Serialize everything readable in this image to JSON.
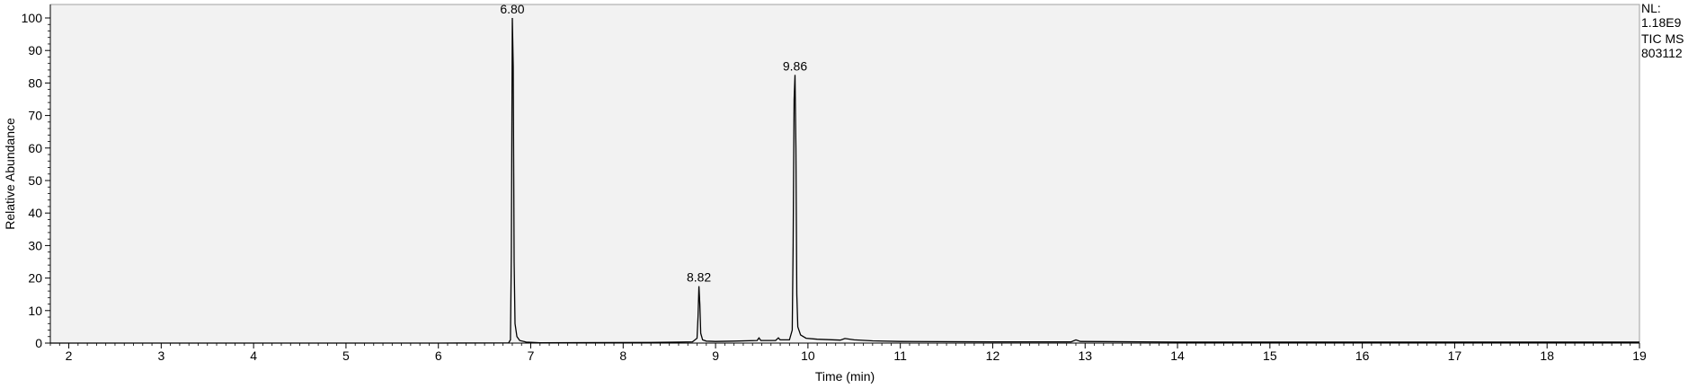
{
  "chart_data": {
    "type": "line",
    "title": "",
    "xlabel": "Time (min)",
    "ylabel": "Relative Abundance",
    "xlim": [
      1.8,
      19.0
    ],
    "ylim": [
      0,
      100
    ],
    "x_ticks": [
      2,
      3,
      4,
      5,
      6,
      7,
      8,
      9,
      10,
      11,
      12,
      13,
      14,
      15,
      16,
      17,
      18,
      19
    ],
    "y_ticks": [
      0,
      10,
      20,
      30,
      40,
      50,
      60,
      70,
      80,
      90,
      100
    ],
    "grid": false,
    "background": "#f2f2f2",
    "line_color": "#000000",
    "peaks": [
      {
        "label": "6.80",
        "x": 6.8,
        "y": 100
      },
      {
        "label": "8.82",
        "x": 8.82,
        "y": 17.5
      },
      {
        "label": "9.86",
        "x": 9.86,
        "y": 82.5
      }
    ],
    "series": [
      {
        "points": [
          [
            1.8,
            0.0
          ],
          [
            6.0,
            0.0
          ],
          [
            6.76,
            0.05
          ],
          [
            6.78,
            1.0
          ],
          [
            6.79,
            27.0
          ],
          [
            6.8,
            100.0
          ],
          [
            6.81,
            85.0
          ],
          [
            6.82,
            25.0
          ],
          [
            6.83,
            6.0
          ],
          [
            6.85,
            2.0
          ],
          [
            6.88,
            0.8
          ],
          [
            6.95,
            0.3
          ],
          [
            7.1,
            0.1
          ],
          [
            8.3,
            0.2
          ],
          [
            8.6,
            0.3
          ],
          [
            8.75,
            0.4
          ],
          [
            8.8,
            1.5
          ],
          [
            8.81,
            8.0
          ],
          [
            8.82,
            17.5
          ],
          [
            8.83,
            12.0
          ],
          [
            8.84,
            3.0
          ],
          [
            8.86,
            1.0
          ],
          [
            8.9,
            0.6
          ],
          [
            9.0,
            0.5
          ],
          [
            9.2,
            0.6
          ],
          [
            9.45,
            0.8
          ],
          [
            9.47,
            1.6
          ],
          [
            9.49,
            0.8
          ],
          [
            9.65,
            0.8
          ],
          [
            9.68,
            1.6
          ],
          [
            9.7,
            1.0
          ],
          [
            9.8,
            1.0
          ],
          [
            9.83,
            4.0
          ],
          [
            9.84,
            30.0
          ],
          [
            9.85,
            75.0
          ],
          [
            9.86,
            82.5
          ],
          [
            9.87,
            60.0
          ],
          [
            9.88,
            15.0
          ],
          [
            9.89,
            5.0
          ],
          [
            9.92,
            2.5
          ],
          [
            9.98,
            1.5
          ],
          [
            10.1,
            1.2
          ],
          [
            10.35,
            0.9
          ],
          [
            10.4,
            1.4
          ],
          [
            10.5,
            1.0
          ],
          [
            10.7,
            0.7
          ],
          [
            11.0,
            0.5
          ],
          [
            12.0,
            0.4
          ],
          [
            12.85,
            0.4
          ],
          [
            12.9,
            1.0
          ],
          [
            12.95,
            0.5
          ],
          [
            14.0,
            0.3
          ],
          [
            19.0,
            0.3
          ]
        ]
      }
    ]
  },
  "info": {
    "line1": "NL:",
    "line2": "1.18E9",
    "line3": "TIC  MS",
    "line4": "803112"
  }
}
